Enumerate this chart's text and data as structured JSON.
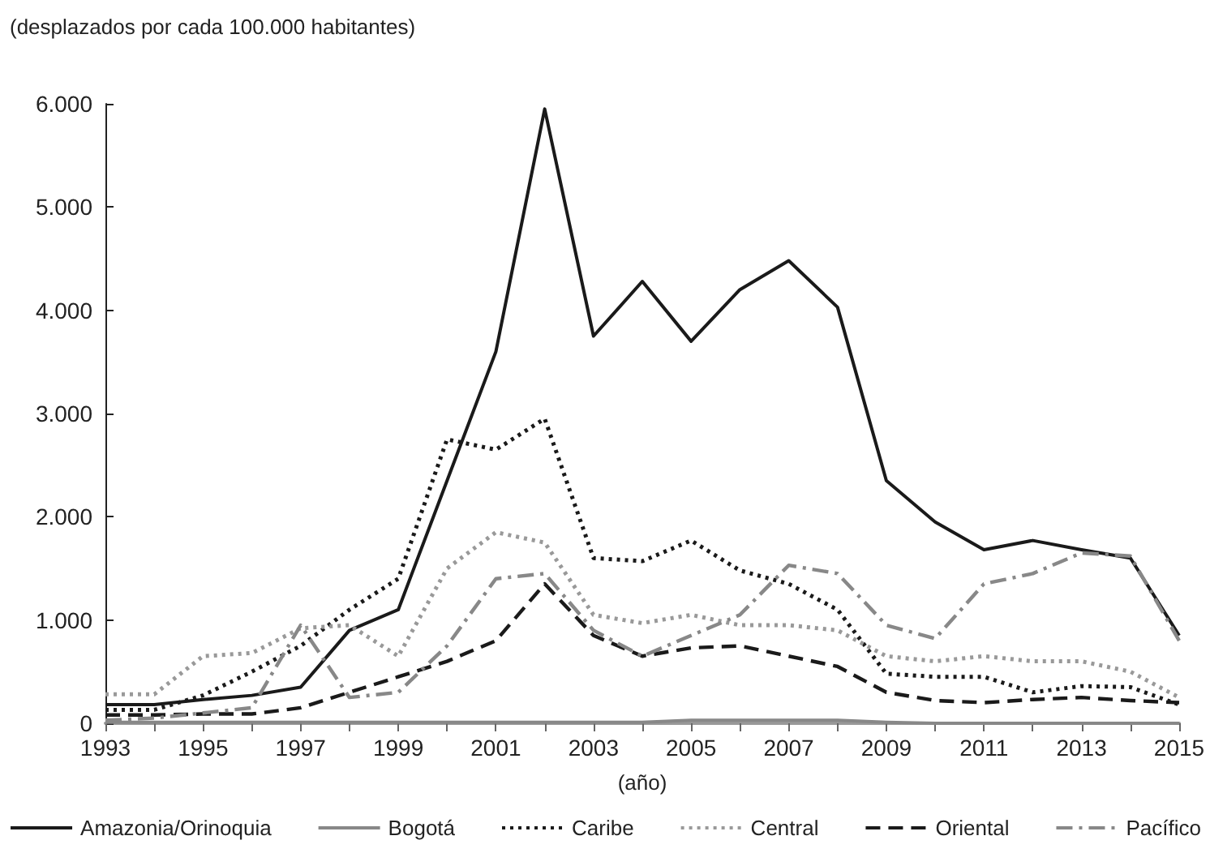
{
  "chart_data": {
    "type": "line",
    "ylabel": "(desplazados por cada 100.000 habitantes)",
    "xlabel": "(año)",
    "x": [
      1993,
      1994,
      1995,
      1996,
      1997,
      1998,
      1999,
      2000,
      2001,
      2002,
      2003,
      2004,
      2005,
      2006,
      2007,
      2008,
      2009,
      2010,
      2011,
      2012,
      2013,
      2014,
      2015
    ],
    "xlim": [
      1993,
      2015
    ],
    "xticks": [
      1993,
      1995,
      1997,
      1999,
      2001,
      2003,
      2005,
      2007,
      2009,
      2011,
      2013,
      2015
    ],
    "ylim": [
      0,
      6000
    ],
    "yticks": [
      0,
      {
        "value": 1000,
        "label": "1.000"
      },
      {
        "value": 2000,
        "label": "2.000"
      },
      {
        "value": 3000,
        "label": "3.000"
      },
      {
        "value": 4000,
        "label": "4.000"
      },
      {
        "value": 5000,
        "label": "5.000"
      },
      {
        "value": 6000,
        "label": "6.000"
      }
    ],
    "grid": false,
    "legend": "bottom",
    "marker": "none",
    "series": [
      {
        "name": "Amazonia/Orinoquia",
        "color": "#1a1a1a",
        "line_style": "solid",
        "values": [
          180,
          180,
          230,
          270,
          350,
          900,
          1100,
          2350,
          3600,
          5950,
          3750,
          4280,
          3700,
          4200,
          4480,
          4030,
          2350,
          1950,
          1680,
          1770,
          1680,
          1600,
          850
        ]
      },
      {
        "name": "Bogotá",
        "color": "#888888",
        "line_style": "solid",
        "values": [
          10,
          10,
          10,
          10,
          10,
          10,
          10,
          10,
          10,
          10,
          10,
          10,
          30,
          30,
          30,
          30,
          10,
          0,
          0,
          0,
          0,
          0,
          0
        ]
      },
      {
        "name": "Caribe",
        "color": "#1a1a1a",
        "line_style": "dotted",
        "values": [
          130,
          130,
          270,
          500,
          750,
          1100,
          1400,
          2750,
          2650,
          2950,
          1600,
          1570,
          1770,
          1480,
          1350,
          1100,
          480,
          450,
          450,
          300,
          360,
          350,
          180
        ]
      },
      {
        "name": "Central",
        "color": "#999999",
        "line_style": "dotted",
        "values": [
          280,
          280,
          650,
          680,
          920,
          950,
          650,
          1500,
          1850,
          1750,
          1050,
          970,
          1050,
          950,
          950,
          900,
          650,
          600,
          650,
          600,
          600,
          500,
          250
        ]
      },
      {
        "name": "Oriental",
        "color": "#1a1a1a",
        "line_style": "dashed",
        "values": [
          80,
          80,
          90,
          90,
          150,
          300,
          450,
          600,
          800,
          1350,
          850,
          650,
          730,
          750,
          650,
          550,
          300,
          220,
          200,
          230,
          250,
          220,
          200
        ]
      },
      {
        "name": "Pacífico",
        "color": "#888888",
        "line_style": "dashdot",
        "values": [
          30,
          50,
          100,
          150,
          950,
          250,
          300,
          750,
          1400,
          1450,
          900,
          650,
          850,
          1050,
          1530,
          1450,
          950,
          820,
          1350,
          1450,
          1650,
          1620,
          800
        ]
      }
    ]
  }
}
